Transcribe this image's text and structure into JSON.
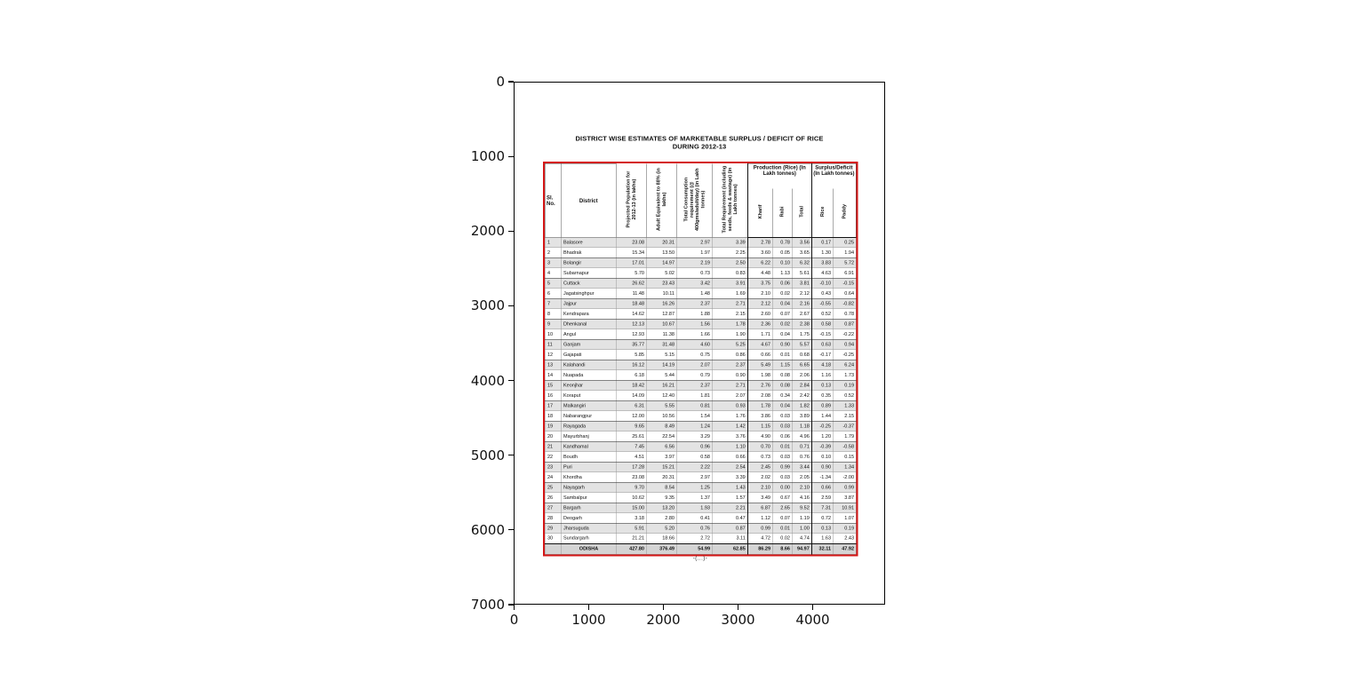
{
  "figure": {
    "background": "#ffffff",
    "x_ticks": [
      "0",
      "1000",
      "2000",
      "3000",
      "4000"
    ],
    "y_ticks": [
      "0",
      "1000",
      "2000",
      "3000",
      "4000",
      "5000",
      "6000",
      "7000"
    ],
    "x_range": [
      0,
      4960
    ],
    "y_range": [
      7017,
      0
    ],
    "grid": "off",
    "content": "scanned document table shown inside matplotlib-style axes"
  },
  "document": {
    "title_line1": "DISTRICT WISE ESTIMATES OF MARKETABLE SURPLUS / DEFICIT OF RICE",
    "title_line2": "DURING 2012-13",
    "footer_mark": "-(...)-",
    "frame_color": "#d41616"
  },
  "table": {
    "headers": {
      "sl_no": "Sl. No.",
      "district": "District",
      "projected_population": "Projected Population for 2012-13 (in lakhs)",
      "adult_equivalent": "Adult Equivalent to 88% (in lakhs)",
      "total_consumption": "Total Consumption requirement (@ 400gms/adult/day) (in Lakh tonnes)",
      "total_requirement": "Total Requirement (including seeds, feeds & wastage) (in Lakh tonnes)",
      "production_group": "Production (Rice) (In Lakh tonnes)",
      "surplus_group": "Surplus/Deficit (In Lakh tonnes)",
      "kharif": "Kharif",
      "rabi": "Rabi",
      "total": "Total",
      "rice": "Rice",
      "paddy": "Paddy"
    }
  },
  "chart_data": {
    "type": "table",
    "title": "DISTRICT WISE ESTIMATES OF MARKETABLE SURPLUS / DEFICIT OF RICE DURING 2012-13",
    "columns": [
      "Sl. No.",
      "District",
      "Projected Population for 2012-13 (in lakhs)",
      "Adult Equivalent to 88% (in lakhs)",
      "Total Consumption requirement (@ 400gms/adult/day) (in Lakh tonnes)",
      "Total Requirement (including seeds, feeds & wastage) (in Lakh tonnes)",
      "Production (Rice) Kharif",
      "Production (Rice) Rabi",
      "Production (Rice) Total",
      "Surplus/Deficit Rice",
      "Surplus/Deficit Paddy"
    ],
    "rows": [
      [
        "1",
        "Balasore",
        "23.08",
        "20.31",
        "2.97",
        "3.39",
        "2.78",
        "0.78",
        "3.56",
        "0.17",
        "0.25"
      ],
      [
        "2",
        "Bhadrak",
        "15.34",
        "13.50",
        "1.97",
        "2.25",
        "3.60",
        "0.05",
        "3.65",
        "1.30",
        "1.94"
      ],
      [
        "3",
        "Bolangir",
        "17.01",
        "14.97",
        "2.19",
        "2.50",
        "6.22",
        "0.10",
        "6.32",
        "3.83",
        "5.72"
      ],
      [
        "4",
        "Subarnapur",
        "5.70",
        "5.02",
        "0.73",
        "0.83",
        "4.48",
        "1.13",
        "5.61",
        "4.63",
        "6.91"
      ],
      [
        "5",
        "Cuttack",
        "26.62",
        "23.43",
        "3.42",
        "3.91",
        "3.75",
        "0.06",
        "3.81",
        "-0.10",
        "-0.15"
      ],
      [
        "6",
        "Jagatsinghpur",
        "11.48",
        "10.11",
        "1.48",
        "1.69",
        "2.10",
        "0.02",
        "2.12",
        "0.43",
        "0.64"
      ],
      [
        "7",
        "Jajpur",
        "18.48",
        "16.26",
        "2.37",
        "2.71",
        "2.12",
        "0.04",
        "2.16",
        "-0.55",
        "-0.82"
      ],
      [
        "8",
        "Kendrapara",
        "14.62",
        "12.87",
        "1.88",
        "2.15",
        "2.60",
        "0.07",
        "2.67",
        "0.52",
        "0.78"
      ],
      [
        "9",
        "Dhenkanal",
        "12.13",
        "10.67",
        "1.56",
        "1.78",
        "2.36",
        "0.02",
        "2.38",
        "0.58",
        "0.87"
      ],
      [
        "10",
        "Angul",
        "12.93",
        "11.38",
        "1.66",
        "1.90",
        "1.71",
        "0.04",
        "1.75",
        "-0.15",
        "-0.22"
      ],
      [
        "11",
        "Ganjam",
        "35.77",
        "31.48",
        "4.60",
        "5.25",
        "4.67",
        "0.90",
        "5.57",
        "0.63",
        "0.94"
      ],
      [
        "12",
        "Gajapati",
        "5.85",
        "5.15",
        "0.75",
        "0.86",
        "0.66",
        "0.01",
        "0.68",
        "-0.17",
        "-0.25"
      ],
      [
        "13",
        "Kalahandi",
        "16.12",
        "14.19",
        "2.07",
        "2.37",
        "5.49",
        "1.15",
        "6.65",
        "4.18",
        "6.24"
      ],
      [
        "14",
        "Nuapada",
        "6.18",
        "5.44",
        "0.79",
        "0.90",
        "1.98",
        "0.08",
        "2.06",
        "1.16",
        "1.73"
      ],
      [
        "15",
        "Keonjhar",
        "18.42",
        "16.21",
        "2.37",
        "2.71",
        "2.76",
        "0.08",
        "2.84",
        "0.13",
        "0.19"
      ],
      [
        "16",
        "Koraput",
        "14.09",
        "12.40",
        "1.81",
        "2.07",
        "2.08",
        "0.34",
        "2.42",
        "0.35",
        "0.52"
      ],
      [
        "17",
        "Malkangiri",
        "6.31",
        "5.55",
        "0.81",
        "0.93",
        "1.78",
        "0.04",
        "1.82",
        "0.89",
        "1.33"
      ],
      [
        "18",
        "Nabarangpur",
        "12.00",
        "10.56",
        "1.54",
        "1.76",
        "3.86",
        "0.03",
        "3.89",
        "1.44",
        "2.15"
      ],
      [
        "19",
        "Rayagada",
        "9.65",
        "8.49",
        "1.24",
        "1.42",
        "1.15",
        "0.03",
        "1.18",
        "-0.25",
        "-0.37"
      ],
      [
        "20",
        "Mayurbhanj",
        "25.61",
        "22.54",
        "3.29",
        "3.76",
        "4.90",
        "0.06",
        "4.96",
        "1.20",
        "1.79"
      ],
      [
        "21",
        "Kandhamal",
        "7.45",
        "6.56",
        "0.96",
        "1.10",
        "0.70",
        "0.01",
        "0.71",
        "-0.39",
        "-0.58"
      ],
      [
        "22",
        "Boudh",
        "4.51",
        "3.97",
        "0.58",
        "0.66",
        "0.73",
        "0.03",
        "0.76",
        "0.10",
        "0.15"
      ],
      [
        "23",
        "Puri",
        "17.28",
        "15.21",
        "2.22",
        "2.54",
        "2.45",
        "0.99",
        "3.44",
        "0.90",
        "1.34"
      ],
      [
        "24",
        "Khordha",
        "23.08",
        "20.31",
        "2.97",
        "3.39",
        "2.02",
        "0.03",
        "2.05",
        "-1.34",
        "-2.00"
      ],
      [
        "25",
        "Nayagarh",
        "9.70",
        "8.54",
        "1.25",
        "1.43",
        "2.10",
        "0.00",
        "2.10",
        "0.66",
        "0.99"
      ],
      [
        "26",
        "Sambalpur",
        "10.62",
        "9.35",
        "1.37",
        "1.57",
        "3.49",
        "0.67",
        "4.16",
        "2.59",
        "3.87"
      ],
      [
        "27",
        "Bargarh",
        "15.00",
        "13.20",
        "1.93",
        "2.21",
        "6.87",
        "2.65",
        "9.52",
        "7.31",
        "10.91"
      ],
      [
        "28",
        "Deogarh",
        "3.18",
        "2.80",
        "0.41",
        "0.47",
        "1.12",
        "0.07",
        "1.19",
        "0.72",
        "1.07"
      ],
      [
        "29",
        "Jharsuguda",
        "5.91",
        "5.20",
        "0.76",
        "0.87",
        "0.99",
        "0.01",
        "1.00",
        "0.13",
        "0.19"
      ],
      [
        "30",
        "Sundargarh",
        "21.21",
        "18.66",
        "2.72",
        "3.11",
        "4.72",
        "0.02",
        "4.74",
        "1.63",
        "2.43"
      ]
    ],
    "total_row": [
      "",
      "ODISHA",
      "427.80",
      "376.49",
      "54.99",
      "62.85",
      "86.29",
      "8.66",
      "94.97",
      "32.11",
      "47.92"
    ],
    "legend": "none",
    "notes": "alternate (odd) data rows shaded grey; table framed in red; column headers rotated 90 degrees"
  }
}
